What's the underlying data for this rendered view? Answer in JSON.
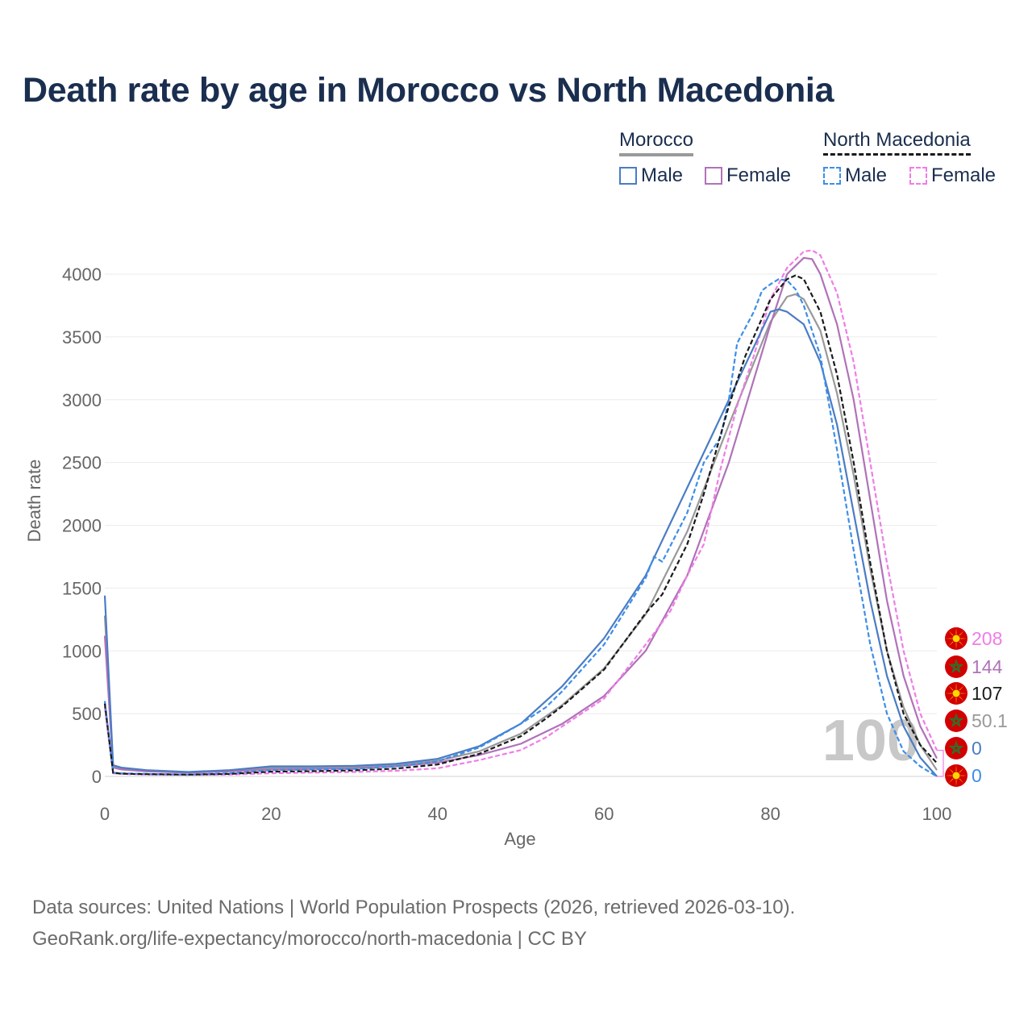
{
  "title": "Death rate by age in Morocco vs North Macedonia",
  "legend": {
    "morocco_label": "Morocco",
    "north_macedonia_label": "North Macedonia",
    "male_label": "Male",
    "female_label": "Female"
  },
  "colors": {
    "morocco_male": "#4a7cc4",
    "morocco_female": "#b072b8",
    "morocco_total": "#999999",
    "nmk_male": "#3d8ee8",
    "nmk_female": "#f07ce8",
    "nmk_total": "#1a1a1a",
    "title": "#1a2e4f"
  },
  "watermark": "100",
  "footer": {
    "line1": "Data sources: United Nations | World Population Prospects (2026, retrieved 2026-03-10).",
    "line2": "GeoRank.org/life-expectancy/morocco/north-macedonia | CC BY"
  },
  "chart_data": {
    "type": "line",
    "title": "Death rate by age in Morocco vs North Macedonia",
    "xlabel": "Age",
    "ylabel": "Death rate",
    "xlim": [
      0,
      100
    ],
    "ylim": [
      0,
      4000
    ],
    "x_ticks": [
      0,
      20,
      40,
      60,
      80,
      100
    ],
    "y_ticks": [
      0,
      500,
      1000,
      1500,
      2000,
      2500,
      3000,
      3500,
      4000
    ],
    "grid": true,
    "series": [
      {
        "key": "morocco_male",
        "name": "Morocco Male",
        "dash": false,
        "points": [
          [
            0,
            1440
          ],
          [
            1,
            90
          ],
          [
            2,
            70
          ],
          [
            5,
            50
          ],
          [
            10,
            35
          ],
          [
            15,
            50
          ],
          [
            20,
            80
          ],
          [
            25,
            80
          ],
          [
            30,
            85
          ],
          [
            35,
            100
          ],
          [
            40,
            140
          ],
          [
            45,
            240
          ],
          [
            50,
            420
          ],
          [
            55,
            720
          ],
          [
            60,
            1100
          ],
          [
            65,
            1600
          ],
          [
            70,
            2300
          ],
          [
            75,
            3000
          ],
          [
            80,
            3700
          ],
          [
            81,
            3720
          ],
          [
            82,
            3700
          ],
          [
            84,
            3600
          ],
          [
            86,
            3300
          ],
          [
            88,
            2800
          ],
          [
            90,
            2100
          ],
          [
            92,
            1400
          ],
          [
            94,
            800
          ],
          [
            96,
            400
          ],
          [
            98,
            150
          ],
          [
            100,
            0
          ]
        ],
        "end_label": "0"
      },
      {
        "key": "morocco_female",
        "name": "Morocco Female",
        "dash": false,
        "points": [
          [
            0,
            1120
          ],
          [
            1,
            70
          ],
          [
            2,
            55
          ],
          [
            5,
            40
          ],
          [
            10,
            30
          ],
          [
            15,
            40
          ],
          [
            20,
            55
          ],
          [
            25,
            60
          ],
          [
            30,
            65
          ],
          [
            35,
            80
          ],
          [
            40,
            110
          ],
          [
            45,
            170
          ],
          [
            50,
            260
          ],
          [
            55,
            420
          ],
          [
            60,
            640
          ],
          [
            65,
            1000
          ],
          [
            70,
            1600
          ],
          [
            75,
            2500
          ],
          [
            80,
            3600
          ],
          [
            82,
            4000
          ],
          [
            84,
            4130
          ],
          [
            85,
            4120
          ],
          [
            86,
            4000
          ],
          [
            88,
            3600
          ],
          [
            90,
            3000
          ],
          [
            92,
            2200
          ],
          [
            94,
            1400
          ],
          [
            96,
            800
          ],
          [
            98,
            400
          ],
          [
            100,
            144
          ]
        ],
        "end_label": "144"
      },
      {
        "key": "morocco_total",
        "name": "Morocco Total",
        "dash": false,
        "points": [
          [
            0,
            1280
          ],
          [
            1,
            80
          ],
          [
            2,
            62
          ],
          [
            5,
            45
          ],
          [
            10,
            33
          ],
          [
            15,
            45
          ],
          [
            20,
            68
          ],
          [
            25,
            70
          ],
          [
            30,
            75
          ],
          [
            35,
            90
          ],
          [
            40,
            125
          ],
          [
            45,
            200
          ],
          [
            50,
            340
          ],
          [
            55,
            570
          ],
          [
            60,
            860
          ],
          [
            65,
            1290
          ],
          [
            70,
            1950
          ],
          [
            75,
            2800
          ],
          [
            80,
            3620
          ],
          [
            82,
            3820
          ],
          [
            83,
            3840
          ],
          [
            84,
            3800
          ],
          [
            86,
            3550
          ],
          [
            88,
            3050
          ],
          [
            90,
            2400
          ],
          [
            92,
            1650
          ],
          [
            94,
            1000
          ],
          [
            96,
            550
          ],
          [
            98,
            250
          ],
          [
            100,
            50
          ]
        ],
        "end_label": "50.1"
      },
      {
        "key": "nmk_male",
        "name": "North Macedonia Male",
        "dash": true,
        "points": [
          [
            0,
            600
          ],
          [
            1,
            30
          ],
          [
            2,
            25
          ],
          [
            5,
            20
          ],
          [
            10,
            15
          ],
          [
            15,
            25
          ],
          [
            20,
            50
          ],
          [
            25,
            55
          ],
          [
            30,
            60
          ],
          [
            35,
            80
          ],
          [
            40,
            120
          ],
          [
            45,
            230
          ],
          [
            50,
            420
          ],
          [
            53,
            550
          ],
          [
            55,
            680
          ],
          [
            60,
            1050
          ],
          [
            65,
            1580
          ],
          [
            66,
            1750
          ],
          [
            67,
            1710
          ],
          [
            68,
            1840
          ],
          [
            70,
            2100
          ],
          [
            72,
            2500
          ],
          [
            74,
            2700
          ],
          [
            75,
            3000
          ],
          [
            76,
            3450
          ],
          [
            78,
            3700
          ],
          [
            79,
            3870
          ],
          [
            80,
            3920
          ],
          [
            81,
            3960
          ],
          [
            82,
            3950
          ],
          [
            83,
            3880
          ],
          [
            84,
            3750
          ],
          [
            86,
            3350
          ],
          [
            88,
            2600
          ],
          [
            90,
            1800
          ],
          [
            92,
            1050
          ],
          [
            94,
            500
          ],
          [
            96,
            200
          ],
          [
            98,
            80
          ],
          [
            100,
            0
          ]
        ],
        "end_label": "0"
      },
      {
        "key": "nmk_female",
        "name": "North Macedonia Female",
        "dash": true,
        "points": [
          [
            0,
            550
          ],
          [
            1,
            25
          ],
          [
            2,
            20
          ],
          [
            5,
            15
          ],
          [
            10,
            12
          ],
          [
            15,
            15
          ],
          [
            20,
            25
          ],
          [
            25,
            30
          ],
          [
            30,
            35
          ],
          [
            35,
            45
          ],
          [
            40,
            65
          ],
          [
            45,
            130
          ],
          [
            50,
            210
          ],
          [
            53,
            310
          ],
          [
            55,
            400
          ],
          [
            60,
            620
          ],
          [
            65,
            1050
          ],
          [
            68,
            1320
          ],
          [
            70,
            1600
          ],
          [
            72,
            1850
          ],
          [
            74,
            2450
          ],
          [
            76,
            2950
          ],
          [
            78,
            3350
          ],
          [
            80,
            3800
          ],
          [
            82,
            4050
          ],
          [
            84,
            4180
          ],
          [
            85,
            4190
          ],
          [
            86,
            4150
          ],
          [
            88,
            3850
          ],
          [
            90,
            3300
          ],
          [
            92,
            2500
          ],
          [
            94,
            1700
          ],
          [
            96,
            1000
          ],
          [
            98,
            500
          ],
          [
            100,
            208
          ]
        ],
        "end_label": "208"
      },
      {
        "key": "nmk_total",
        "name": "North Macedonia Total",
        "dash": true,
        "points": [
          [
            0,
            580
          ],
          [
            1,
            28
          ],
          [
            2,
            22
          ],
          [
            5,
            18
          ],
          [
            10,
            14
          ],
          [
            15,
            20
          ],
          [
            20,
            38
          ],
          [
            25,
            42
          ],
          [
            30,
            48
          ],
          [
            35,
            62
          ],
          [
            40,
            95
          ],
          [
            45,
            180
          ],
          [
            50,
            320
          ],
          [
            53,
            460
          ],
          [
            55,
            560
          ],
          [
            60,
            850
          ],
          [
            65,
            1300
          ],
          [
            67,
            1450
          ],
          [
            70,
            1850
          ],
          [
            72,
            2250
          ],
          [
            75,
            2950
          ],
          [
            77,
            3350
          ],
          [
            80,
            3800
          ],
          [
            82,
            3960
          ],
          [
            83,
            3990
          ],
          [
            84,
            3960
          ],
          [
            86,
            3700
          ],
          [
            88,
            3200
          ],
          [
            90,
            2500
          ],
          [
            92,
            1700
          ],
          [
            94,
            1000
          ],
          [
            96,
            500
          ],
          [
            98,
            250
          ],
          [
            100,
            107
          ]
        ],
        "end_label": "107"
      }
    ]
  }
}
